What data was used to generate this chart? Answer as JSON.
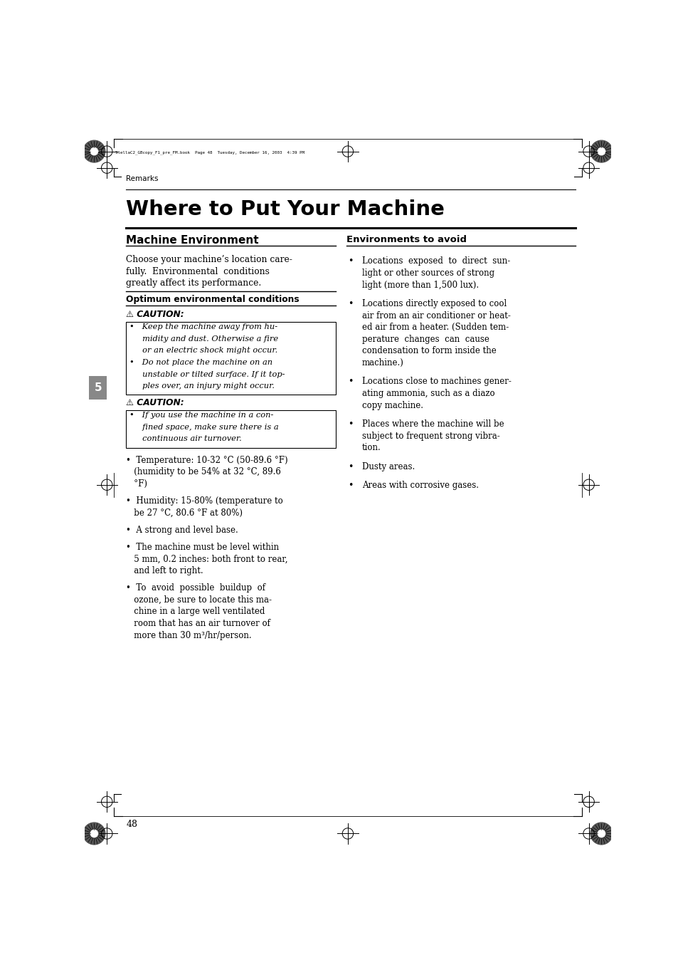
{
  "bg_color": "#ffffff",
  "page_width": 9.54,
  "page_height": 13.48,
  "header_file": "StellaC2_GBcopy_F1_pre_FM.book  Page 48  Tuesday, December 16, 2003  4:39 PM",
  "section_label": "Remarks",
  "main_title": "Where to Put Your Machine",
  "left_col_heading": "Machine Environment",
  "left_intro_lines": [
    "Choose your machine’s location care-",
    "fully.  Environmental  conditions",
    "greatly affect its performance."
  ],
  "left_subheading": "Optimum environmental conditions",
  "caution1_header": "⚠ CAUTION:",
  "caution1_lines": [
    "•   Keep the machine away from hu-",
    "     midity and dust. Otherwise a fire",
    "     or an electric shock might occur.",
    "•   Do not place the machine on an",
    "     unstable or tilted surface. If it top-",
    "     ples over, an injury might occur."
  ],
  "caution2_header": "⚠ CAUTION:",
  "caution2_lines": [
    "•   If you use the machine in a con-",
    "     fined space, make sure there is a",
    "     continuous air turnover."
  ],
  "left_bullet_groups": [
    [
      "•  Temperature: 10-32 °C (50-89.6 °F)",
      "   (humidity to be 54% at 32 °C, 89.6",
      "   °F)"
    ],
    [
      "•  Humidity: 15-80% (temperature to",
      "   be 27 °C, 80.6 °F at 80%)"
    ],
    [
      "•  A strong and level base."
    ],
    [
      "•  The machine must be level within",
      "   5 mm, 0.2 inches: both front to rear,",
      "   and left to right."
    ],
    [
      "•  To  avoid  possible  buildup  of",
      "   ozone, be sure to locate this ma-",
      "   chine in a large well ventilated",
      "   room that has an air turnover of",
      "   more than 30 m³/hr/person."
    ]
  ],
  "right_col_heading": "Environments to avoid",
  "right_bullet_groups": [
    [
      "Locations  exposed  to  direct  sun-",
      "light or other sources of strong",
      "light (more than 1,500 lux)."
    ],
    [
      "Locations directly exposed to cool",
      "air from an air conditioner or heat-",
      "ed air from a heater. (Sudden tem-",
      "perature  changes  can  cause",
      "condensation to form inside the",
      "machine.)"
    ],
    [
      "Locations close to machines gener-",
      "ating ammonia, such as a diazo",
      "copy machine."
    ],
    [
      "Places where the machine will be",
      "subject to frequent strong vibra-",
      "tion."
    ],
    [
      "Dusty areas."
    ],
    [
      "Areas with corrosive gases."
    ]
  ],
  "page_number": "48",
  "tab_number": "5"
}
